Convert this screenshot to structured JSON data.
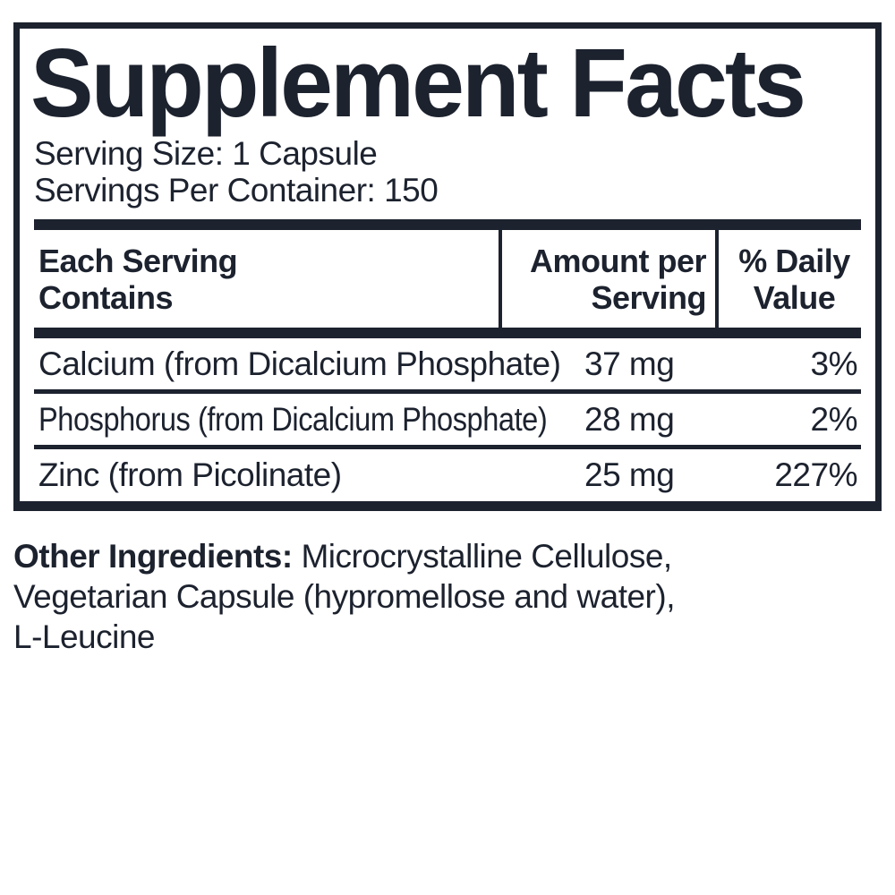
{
  "label": {
    "title": "Supplement Facts",
    "serving_size": "Serving Size: 1 Capsule",
    "servings_per_container": "Servings Per Container: 150",
    "header": {
      "col1_line1": "Each Serving",
      "col1_line2": "Contains",
      "col2_line1": "Amount per",
      "col2_line2": "Serving",
      "col3_line1": "% Daily",
      "col3_line2": "Value"
    },
    "rows": [
      {
        "name": "Calcium (from Dicalcium Phosphate)",
        "amount": "37 mg",
        "daily_value": "3%"
      },
      {
        "name": "Phosphorus (from Dicalcium Phosphate)",
        "amount": "28 mg",
        "daily_value": "2%"
      },
      {
        "name": "Zinc (from Picolinate)",
        "amount": "25 mg",
        "daily_value": "227%"
      }
    ],
    "other_ingredients": {
      "label": "Other Ingredients:",
      "line1": "Microcrystalline Cellulose,",
      "line2": "Vegetarian Capsule (hypromellose and water),",
      "line3": "L-Leucine"
    },
    "colors": {
      "ink": "#1c222e",
      "background": "#ffffff"
    }
  }
}
